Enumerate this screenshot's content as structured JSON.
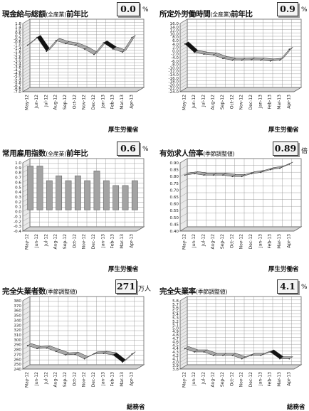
{
  "months": [
    "May-12",
    "Jun-12",
    "Jul-12",
    "Aug-12",
    "Sep-12",
    "Oct-12",
    "Nov-12",
    "Dec-12",
    "Jan-13",
    "Feb-13",
    "Mar-13",
    "Apr-13"
  ],
  "panels": [
    {
      "title": "現金給与総額",
      "title_suffix": "(全産業)",
      "title_tail": "前年比",
      "value": "0.0",
      "unit": "%",
      "source": "厚生労働省"
    },
    {
      "title": "所定外労働時間",
      "title_suffix": "(全産業)",
      "title_tail": "前年比",
      "value": "0.9",
      "unit": "%",
      "source": "厚生労働省"
    },
    {
      "title": "常用雇用指数",
      "title_suffix": "(全産業)",
      "title_tail": "前年比",
      "value": "0.6",
      "unit": "%",
      "source": "厚生労働省"
    },
    {
      "title": "有効求人倍率",
      "title_suffix": "(季節調整値)",
      "title_tail": "",
      "value": "0.89",
      "unit": "倍",
      "source": "厚生労働省"
    },
    {
      "title": "完全失業者数",
      "title_suffix": "(季節調整値)",
      "title_tail": "",
      "value": "271",
      "unit": "万人",
      "source": "総務省"
    },
    {
      "title": "完全失業率",
      "title_suffix": "(季節調整値)",
      "title_tail": "",
      "value": "4.1",
      "unit": "%",
      "source": "総務省"
    }
  ],
  "colors": {
    "band": "#a9a9a9",
    "band_dark": "#111111",
    "bar": "#a3a3a3",
    "grid": "#8a8a8a",
    "wall": "#ffffff"
  },
  "chart_data": [
    {
      "type": "line",
      "categories": [
        "May-12",
        "Jun-12",
        "Jul-12",
        "Aug-12",
        "Sep-12",
        "Oct-12",
        "Nov-12",
        "Dec-12",
        "Jan-13",
        "Feb-13",
        "Mar-13",
        "Apr-13"
      ],
      "series": [
        {
          "values": [
            -1.0,
            0.0,
            -1.8,
            -0.4,
            -0.8,
            -1.0,
            -1.5,
            -2.2,
            -0.7,
            -1.5,
            -1.9,
            0.0
          ]
        }
      ],
      "ylim": [
        -7.0,
        1.8
      ],
      "yticks": [
        "1.8",
        "1.4",
        "1.0",
        "0.6",
        "0.2",
        "-0.2",
        "-0.6",
        "-1.0",
        "-1.4",
        "-1.8",
        "-2.2",
        "-2.6",
        "-3.0",
        "-3.4",
        "-3.8",
        "-4.2",
        "-4.6",
        "-5.0",
        "-5.4",
        "-5.8",
        "-6.2",
        "-6.6",
        "-7.0"
      ],
      "grid": true
    },
    {
      "type": "line",
      "categories": [
        "May-12",
        "Jun-12",
        "Jul-12",
        "Aug-12",
        "Sep-12",
        "Oct-12",
        "Nov-12",
        "Dec-12",
        "Jan-13",
        "Feb-13",
        "Mar-13",
        "Apr-13"
      ],
      "series": [
        {
          "values": [
            4.0,
            -1.0,
            -2.0,
            -2.5,
            -4.5,
            -5.5,
            -5.5,
            -5.3,
            -5.5,
            -6.0,
            -5.5,
            0.9
          ]
        }
      ],
      "ylim": [
        -24.0,
        16.0
      ],
      "yticks": [
        "16.0",
        "14.0",
        "12.0",
        "10.0",
        "8.0",
        "6.0",
        "4.0",
        "2.0",
        "0.0",
        "-2.0",
        "-4.0",
        "-6.0",
        "-8.0",
        "-10.0",
        "-12.0",
        "-14.0",
        "-16.0",
        "-18.0",
        "-20.0",
        "-22.0",
        "-24.0"
      ],
      "grid": true
    },
    {
      "type": "bar",
      "categories": [
        "May-12",
        "Jun-12",
        "Jul-12",
        "Aug-12",
        "Sep-12",
        "Oct-12",
        "Nov-12",
        "Dec-12",
        "Jan-13",
        "Feb-13",
        "Mar-13",
        "Apr-13"
      ],
      "series": [
        {
          "values": [
            0.9,
            0.9,
            0.6,
            0.7,
            0.6,
            0.7,
            0.6,
            0.8,
            0.6,
            0.5,
            0.5,
            0.6
          ]
        }
      ],
      "ylim": [
        -0.4,
        1.0
      ],
      "yticks": [
        "1.0",
        "0.9",
        "0.8",
        "0.7",
        "0.6",
        "0.5",
        "0.4",
        "0.3",
        "0.2",
        "0.1",
        "0.0",
        "-0.1",
        "-0.2",
        "-0.3",
        "-0.4"
      ],
      "grid": true
    },
    {
      "type": "line",
      "categories": [
        "May-12",
        "Jun-12",
        "Jul-12",
        "Aug-12",
        "Sep-12",
        "Oct-12",
        "Nov-12",
        "Dec-12",
        "Jan-13",
        "Feb-13",
        "Mar-13",
        "Apr-13"
      ],
      "series": [
        {
          "values": [
            0.81,
            0.82,
            0.81,
            0.81,
            0.81,
            0.8,
            0.8,
            0.82,
            0.83,
            0.85,
            0.86,
            0.89
          ]
        }
      ],
      "ylim": [
        0.4,
        0.9
      ],
      "yticks": [
        "0.90",
        "0.85",
        "0.80",
        "0.75",
        "0.70",
        "0.65",
        "0.60",
        "0.55",
        "0.50",
        "0.45",
        "0.40"
      ],
      "grid": true
    },
    {
      "type": "line",
      "categories": [
        "May-12",
        "Jun-12",
        "Jul-12",
        "Aug-12",
        "Sep-12",
        "Oct-12",
        "Nov-12",
        "Dec-12",
        "Jan-13",
        "Feb-13",
        "Mar-13",
        "Apr-13"
      ],
      "series": [
        {
          "values": [
            288,
            282,
            283,
            276,
            269,
            270,
            261,
            271,
            272,
            269,
            254,
            271
          ]
        }
      ],
      "ylim": [
        240,
        380
      ],
      "yticks": [
        "380",
        "370",
        "360",
        "350",
        "340",
        "330",
        "320",
        "310",
        "300",
        "290",
        "280",
        "270",
        "260",
        "250",
        "240"
      ],
      "grid": true
    },
    {
      "type": "line",
      "categories": [
        "May-12",
        "Jun-12",
        "Jul-12",
        "Aug-12",
        "Sep-12",
        "Oct-12",
        "Nov-12",
        "Dec-12",
        "Jan-13",
        "Feb-13",
        "Mar-13",
        "Apr-13"
      ],
      "series": [
        {
          "values": [
            4.4,
            4.3,
            4.3,
            4.2,
            4.2,
            4.2,
            4.1,
            4.2,
            4.2,
            4.3,
            4.1,
            4.1
          ]
        }
      ],
      "ylim": [
        3.8,
        5.8
      ],
      "yticks": [
        "5.8",
        "5.7",
        "5.6",
        "5.5",
        "5.4",
        "5.3",
        "5.2",
        "5.1",
        "5.0",
        "4.9",
        "4.8",
        "4.7",
        "4.6",
        "4.5",
        "4.4",
        "4.3",
        "4.2",
        "4.1",
        "4.0",
        "3.9",
        "3.8"
      ],
      "grid": true
    }
  ]
}
